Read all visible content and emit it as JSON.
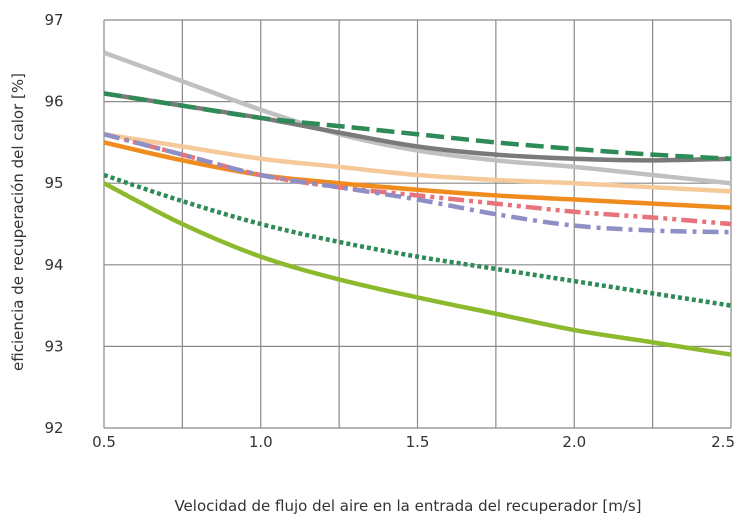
{
  "chart_data": {
    "type": "line",
    "title": "",
    "xlabel": "Velocidad de flujo del aire en la entrada del recuperador [m/s]",
    "ylabel": "eficiencia de recuperación del calor [%]",
    "xlim": [
      0.5,
      2.5
    ],
    "ylim": [
      92,
      97
    ],
    "xticks": [
      "0.5",
      "1.0",
      "1.5",
      "2.0",
      "2.5"
    ],
    "yticks": [
      "92",
      "93",
      "94",
      "95",
      "96",
      "97"
    ],
    "grid": true,
    "legend": "none",
    "series": [
      {
        "color": "#c0c0c0",
        "dash": "solid",
        "x": [
          0.5,
          0.75,
          1.0,
          1.25,
          1.5,
          1.75,
          2.0,
          2.25,
          2.5
        ],
        "y": [
          96.6,
          96.25,
          95.9,
          95.6,
          95.4,
          95.28,
          95.2,
          95.1,
          95.0
        ]
      },
      {
        "color": "#7a7a7a",
        "dash": "solid",
        "x": [
          0.5,
          0.75,
          1.0,
          1.25,
          1.5,
          1.75,
          2.0,
          2.25,
          2.5
        ],
        "y": [
          96.1,
          95.95,
          95.8,
          95.62,
          95.45,
          95.35,
          95.3,
          95.28,
          95.3
        ]
      },
      {
        "color": "#2e8b57",
        "dash": "dashed",
        "x": [
          0.5,
          0.75,
          1.0,
          1.25,
          1.5,
          1.75,
          2.0,
          2.25,
          2.5
        ],
        "y": [
          96.1,
          95.95,
          95.8,
          95.7,
          95.6,
          95.5,
          95.42,
          95.35,
          95.3
        ]
      },
      {
        "color": "#f5c99a",
        "dash": "solid",
        "x": [
          0.5,
          0.75,
          1.0,
          1.25,
          1.5,
          1.75,
          2.0,
          2.25,
          2.5
        ],
        "y": [
          95.6,
          95.45,
          95.3,
          95.2,
          95.1,
          95.04,
          95.0,
          94.95,
          94.9
        ]
      },
      {
        "color": "#f08c1e",
        "dash": "solid",
        "x": [
          0.5,
          0.75,
          1.0,
          1.25,
          1.5,
          1.75,
          2.0,
          2.25,
          2.5
        ],
        "y": [
          95.5,
          95.28,
          95.1,
          95.0,
          94.92,
          94.85,
          94.8,
          94.75,
          94.7
        ]
      },
      {
        "color": "#e8737a",
        "dash": "dashdotdot",
        "x": [
          0.5,
          0.75,
          1.0,
          1.25,
          1.5,
          1.75,
          2.0,
          2.25,
          2.5
        ],
        "y": [
          95.6,
          95.35,
          95.1,
          94.95,
          94.85,
          94.75,
          94.65,
          94.58,
          94.5
        ]
      },
      {
        "color": "#8e8fc7",
        "dash": "dashdot",
        "x": [
          0.5,
          0.75,
          1.0,
          1.25,
          1.5,
          1.75,
          2.0,
          2.25,
          2.5
        ],
        "y": [
          95.6,
          95.35,
          95.1,
          94.95,
          94.8,
          94.62,
          94.48,
          94.42,
          94.4
        ]
      },
      {
        "color": "#2e8b57",
        "dash": "dotted",
        "x": [
          0.5,
          0.75,
          1.0,
          1.25,
          1.5,
          1.75,
          2.0,
          2.25,
          2.5
        ],
        "y": [
          95.1,
          94.78,
          94.5,
          94.28,
          94.1,
          93.95,
          93.8,
          93.65,
          93.5
        ]
      },
      {
        "color": "#8db92e",
        "dash": "solid",
        "x": [
          0.5,
          0.75,
          1.0,
          1.25,
          1.5,
          1.75,
          2.0,
          2.25,
          2.5
        ],
        "y": [
          95.0,
          94.5,
          94.1,
          93.82,
          93.6,
          93.4,
          93.2,
          93.05,
          92.9
        ]
      }
    ]
  }
}
